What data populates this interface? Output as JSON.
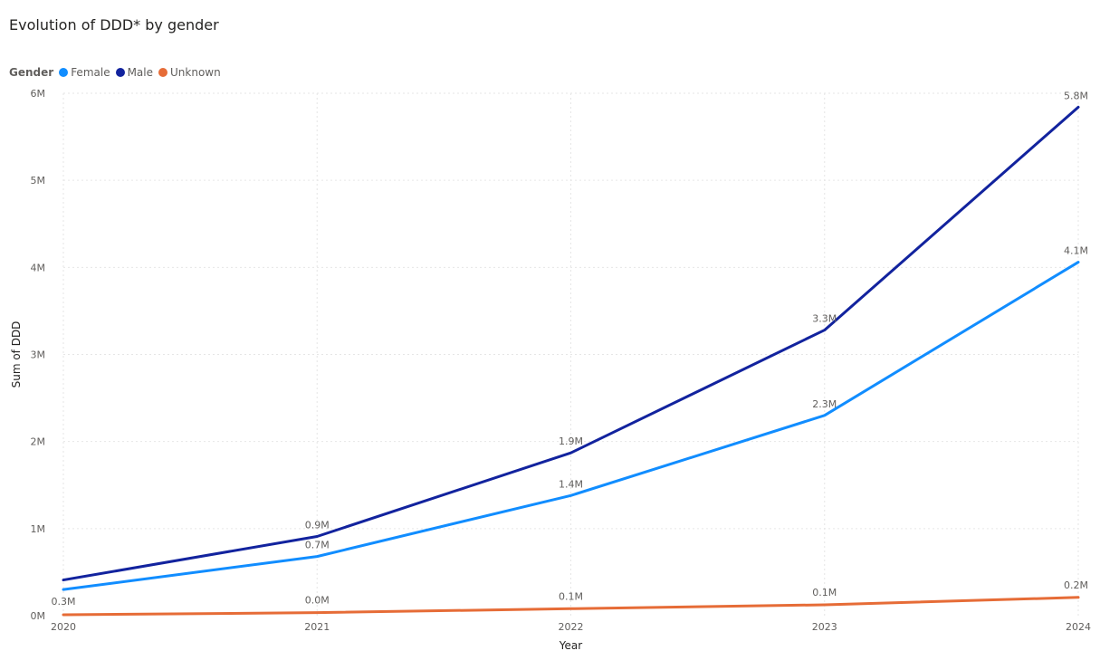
{
  "title": "Evolution of DDD* by gender",
  "legend": {
    "title": "Gender",
    "items": [
      {
        "label": "Female",
        "color": "#118DFF"
      },
      {
        "label": "Male",
        "color": "#12239E"
      },
      {
        "label": "Unknown",
        "color": "#E66C37"
      }
    ]
  },
  "chart_data": {
    "type": "line",
    "title": "Evolution of DDD* by gender",
    "xlabel": "Year",
    "ylabel": "Sum of DDD",
    "x": [
      "2020",
      "2021",
      "2022",
      "2023",
      "2024"
    ],
    "ylim": [
      0,
      6000000
    ],
    "yticks": [
      0,
      1000000,
      2000000,
      3000000,
      4000000,
      5000000,
      6000000
    ],
    "ytick_labels": [
      "0M",
      "1M",
      "2M",
      "3M",
      "4M",
      "5M",
      "6M"
    ],
    "grid": true,
    "legend_position": "top-left",
    "series": [
      {
        "name": "Female",
        "color": "#118DFF",
        "values": [
          300000,
          680000,
          1380000,
          2300000,
          4060000
        ],
        "labels": [
          "0.3M",
          "0.7M",
          "1.4M",
          "2.3M",
          "4.1M"
        ]
      },
      {
        "name": "Male",
        "color": "#12239E",
        "values": [
          410000,
          910000,
          1870000,
          3280000,
          5840000
        ],
        "labels": [
          "",
          "0.9M",
          "1.9M",
          "3.3M",
          "5.8M"
        ]
      },
      {
        "name": "Unknown",
        "color": "#E66C37",
        "values": [
          10000,
          35000,
          80000,
          125000,
          210000
        ],
        "labels": [
          "",
          "0.0M",
          "0.1M",
          "0.1M",
          "0.2M"
        ]
      }
    ]
  }
}
